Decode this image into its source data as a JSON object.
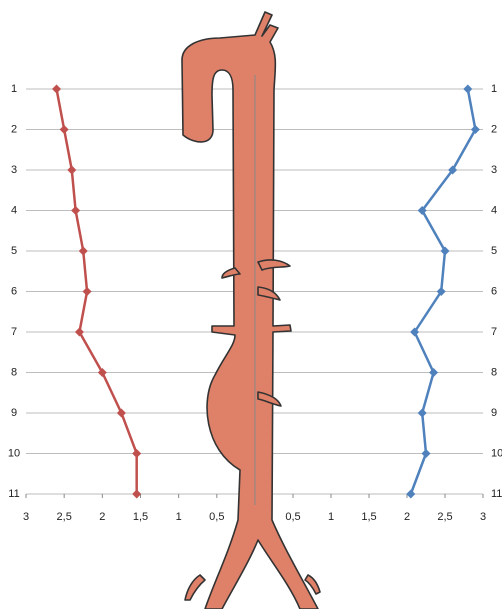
{
  "chart_data": [
    {
      "type": "line",
      "categories": [
        "1",
        "2",
        "3",
        "4",
        "5",
        "6",
        "7",
        "8",
        "9",
        "10",
        "11"
      ],
      "series": [
        {
          "color": "#c0504d",
          "values": [
            2.6,
            2.5,
            2.4,
            2.35,
            2.25,
            2.2,
            2.3,
            2.0,
            1.75,
            1.55,
            1.55
          ]
        }
      ],
      "xlim": [
        3,
        0
      ],
      "xticks": [
        3,
        {
          "value": 2.5,
          "label": "2,5"
        },
        2,
        {
          "value": 1.5,
          "label": "1,5"
        },
        1,
        {
          "value": 0.5,
          "label": "0,5"
        }
      ],
      "grid": true
    },
    {
      "type": "line",
      "categories": [
        "1",
        "2",
        "3",
        "4",
        "5",
        "6",
        "7",
        "8",
        "9",
        "10",
        "11"
      ],
      "series": [
        {
          "color": "#4f81bd",
          "values": [
            2.8,
            2.9,
            2.6,
            2.2,
            2.5,
            2.45,
            2.1,
            2.35,
            2.2,
            2.25,
            2.05
          ]
        }
      ],
      "xlim": [
        0,
        3
      ],
      "xticks": [
        0,
        {
          "value": 0.5,
          "label": "0,5"
        },
        1,
        {
          "value": 1.5,
          "label": "1,5"
        },
        2,
        {
          "value": 2.5,
          "label": "2,5"
        },
        3
      ],
      "grid": true
    }
  ]
}
